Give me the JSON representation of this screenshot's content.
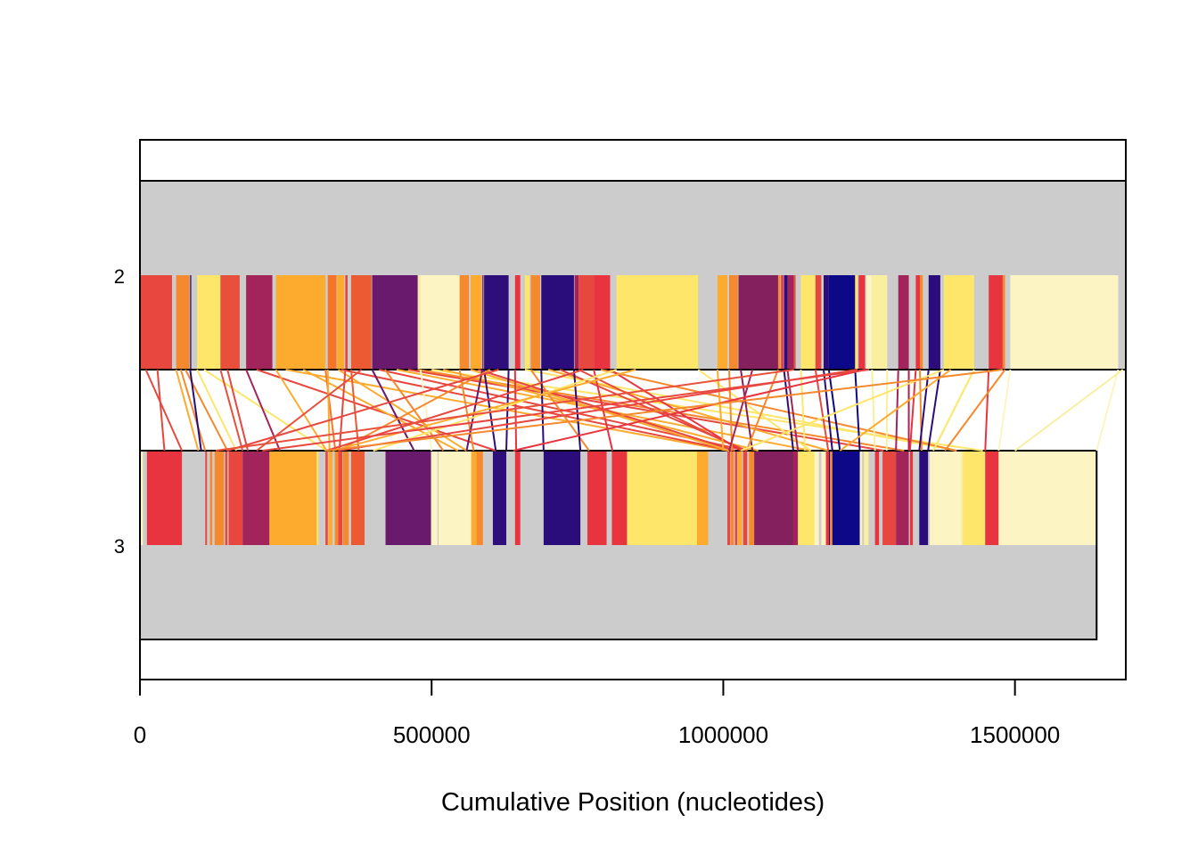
{
  "chart_data": {
    "type": "synteny",
    "title": "",
    "xlabel": "Cumulative Position (nucleotides)",
    "ylabel": "",
    "xlim": [
      0,
      1690000
    ],
    "x_ticks": [
      0,
      500000,
      1000000,
      1500000
    ],
    "x_tick_labels": [
      "0",
      "500000",
      "1000000",
      "1500000"
    ],
    "grid": false,
    "legend": "none",
    "background_color": "#cccccc",
    "genomes": [
      {
        "label": "2",
        "length": 1690000,
        "blocks": [
          [
            0,
            55000,
            "#e8473f"
          ],
          [
            62000,
            85000,
            "#f5892e"
          ],
          [
            86000,
            88000,
            "#2a0c7a"
          ],
          [
            98000,
            138000,
            "#fde66a"
          ],
          [
            138000,
            171000,
            "#e8503b"
          ],
          [
            182000,
            227000,
            "#a3245a"
          ],
          [
            233000,
            318000,
            "#fcab2e"
          ],
          [
            322000,
            337000,
            "#f6742a"
          ],
          [
            338000,
            350000,
            "#fcab2e"
          ],
          [
            352000,
            356000,
            "#e8473f"
          ],
          [
            362000,
            397000,
            "#ec5a34"
          ],
          [
            398000,
            476000,
            "#6a1a6c"
          ],
          [
            477000,
            481000,
            "#f9ef9e"
          ],
          [
            481000,
            548000,
            "#fdf4c4"
          ],
          [
            548000,
            564000,
            "#f5892e"
          ],
          [
            567000,
            586000,
            "#fcab2e"
          ],
          [
            587000,
            589000,
            "#6a1a6c"
          ],
          [
            590000,
            632000,
            "#2e0e7a"
          ],
          [
            643000,
            652000,
            "#e8343f"
          ],
          [
            660000,
            668000,
            "#fde66a"
          ],
          [
            670000,
            686000,
            "#f5892e"
          ],
          [
            688000,
            744000,
            "#2a0c7a"
          ],
          [
            745000,
            752000,
            "#a3245a"
          ],
          [
            752000,
            778000,
            "#e8473f"
          ],
          [
            778000,
            806000,
            "#e8343f"
          ],
          [
            817000,
            957000,
            "#fde66a"
          ],
          [
            990000,
            1007000,
            "#fcab2e"
          ],
          [
            1010000,
            1025000,
            "#f5892e"
          ],
          [
            1026000,
            1094000,
            "#84205e"
          ],
          [
            1094000,
            1098000,
            "#f5892e"
          ],
          [
            1099000,
            1103000,
            "#e8343f"
          ],
          [
            1104000,
            1110000,
            "#2a0c7a"
          ],
          [
            1110000,
            1121000,
            "#a3245a"
          ],
          [
            1121000,
            1124000,
            "#e8503b"
          ],
          [
            1133000,
            1158000,
            "#fde66a"
          ],
          [
            1158000,
            1168000,
            "#e8473f"
          ],
          [
            1172000,
            1181000,
            "#2a0c7a"
          ],
          [
            1181000,
            1226000,
            "#0d0887"
          ],
          [
            1226000,
            1230000,
            "#fde66a"
          ],
          [
            1232000,
            1243000,
            "#e8343f"
          ],
          [
            1245000,
            1255000,
            "#fdf4c4"
          ],
          [
            1255000,
            1281000,
            "#f9ef9e"
          ],
          [
            1300000,
            1318000,
            "#a3245a"
          ],
          [
            1330000,
            1337000,
            "#e8343f"
          ],
          [
            1337000,
            1342000,
            "#f5892e"
          ],
          [
            1352000,
            1372000,
            "#2a0c7a"
          ],
          [
            1378000,
            1430000,
            "#fde66a"
          ],
          [
            1455000,
            1479000,
            "#e8343f"
          ],
          [
            1479000,
            1483000,
            "#f5892e"
          ],
          [
            1492000,
            1677000,
            "#fdf4c4"
          ]
        ]
      },
      {
        "label": "3",
        "length": 1640000,
        "blocks": [
          [
            0,
            5000,
            "#fdf4c4"
          ],
          [
            12000,
            72000,
            "#e8343f"
          ],
          [
            112000,
            115000,
            "#e8473f"
          ],
          [
            120000,
            124000,
            "#f5892e"
          ],
          [
            128000,
            144000,
            "#f5892e"
          ],
          [
            146000,
            150000,
            "#e8473f"
          ],
          [
            152000,
            176000,
            "#e8473f"
          ],
          [
            176000,
            222000,
            "#a3245a"
          ],
          [
            222000,
            303000,
            "#fcab2e"
          ],
          [
            303000,
            306000,
            "#fde66a"
          ],
          [
            318000,
            322000,
            "#e8473f"
          ],
          [
            323000,
            330000,
            "#fcab2e"
          ],
          [
            334000,
            340000,
            "#f5892e"
          ],
          [
            340000,
            347000,
            "#e8473f"
          ],
          [
            348000,
            358000,
            "#f5892e"
          ],
          [
            362000,
            385000,
            "#ec5a34"
          ],
          [
            421000,
            499000,
            "#6a1a6c"
          ],
          [
            499000,
            510000,
            "#fdf4c4"
          ],
          [
            512000,
            568000,
            "#fdf4c4"
          ],
          [
            568000,
            577000,
            "#fcab2e"
          ],
          [
            577000,
            588000,
            "#f5892e"
          ],
          [
            605000,
            628000,
            "#2e0e7a"
          ],
          [
            643000,
            652000,
            "#e8343f"
          ],
          [
            692000,
            755000,
            "#2a0c7a"
          ],
          [
            767000,
            800000,
            "#e8343f"
          ],
          [
            809000,
            835000,
            "#e8343f"
          ],
          [
            835000,
            955000,
            "#fde66a"
          ],
          [
            955000,
            974000,
            "#fcab2e"
          ],
          [
            1007000,
            1012000,
            "#e8473f"
          ],
          [
            1013000,
            1018000,
            "#f5892e"
          ],
          [
            1020000,
            1024000,
            "#e8473f"
          ],
          [
            1025000,
            1032000,
            "#fcab2e"
          ],
          [
            1034000,
            1041000,
            "#e8473f"
          ],
          [
            1044000,
            1053000,
            "#f5892e"
          ],
          [
            1053000,
            1120000,
            "#84205e"
          ],
          [
            1120000,
            1128000,
            "#a3245a"
          ],
          [
            1128000,
            1133000,
            "#fde66a"
          ],
          [
            1133000,
            1156000,
            "#fde66a"
          ],
          [
            1156000,
            1164000,
            "#fdf4c4"
          ],
          [
            1168000,
            1176000,
            "#fdf4c4"
          ],
          [
            1176000,
            1181000,
            "#e8343f"
          ],
          [
            1181000,
            1183000,
            "#2a0c7a"
          ],
          [
            1183000,
            1187000,
            "#f5892e"
          ],
          [
            1187000,
            1234000,
            "#0d0887"
          ],
          [
            1234000,
            1238000,
            "#fdf4c4"
          ],
          [
            1241000,
            1249000,
            "#f9ef9e"
          ],
          [
            1260000,
            1267000,
            "#e8343f"
          ],
          [
            1273000,
            1296000,
            "#e8473f"
          ],
          [
            1296000,
            1318000,
            "#a3245a"
          ],
          [
            1320000,
            1325000,
            "#e8343f"
          ],
          [
            1336000,
            1351000,
            "#2a0c7a"
          ],
          [
            1354000,
            1359000,
            "#fdf4c4"
          ],
          [
            1359000,
            1408000,
            "#fdf4c4"
          ],
          [
            1408000,
            1411000,
            "#f9ef9e"
          ],
          [
            1411000,
            1449000,
            "#fde66a"
          ],
          [
            1449000,
            1472000,
            "#e8343f"
          ],
          [
            1472000,
            1640000,
            "#fdf4c4"
          ]
        ]
      }
    ],
    "links": [
      [
        10000,
        72000,
        "#e8473f"
      ],
      [
        30000,
        42000,
        "#e8473f"
      ],
      [
        62000,
        100000,
        "#fcab2e"
      ],
      [
        70000,
        112000,
        "#f5892e"
      ],
      [
        78000,
        150000,
        "#f5892e"
      ],
      [
        86000,
        105000,
        "#2a0c7a"
      ],
      [
        98000,
        165000,
        "#fde66a"
      ],
      [
        110000,
        320000,
        "#fde66a"
      ],
      [
        138000,
        176000,
        "#e8503b"
      ],
      [
        150000,
        185000,
        "#e8473f"
      ],
      [
        182000,
        240000,
        "#a3245a"
      ],
      [
        200000,
        610000,
        "#e8473f"
      ],
      [
        233000,
        320000,
        "#fcab2e"
      ],
      [
        250000,
        1010000,
        "#fcab2e"
      ],
      [
        280000,
        545000,
        "#fcab2e"
      ],
      [
        318000,
        335000,
        "#f6742a"
      ],
      [
        322000,
        325000,
        "#fcab2e"
      ],
      [
        340000,
        560000,
        "#fcab2e"
      ],
      [
        345000,
        1015000,
        "#e8473f"
      ],
      [
        352000,
        342000,
        "#e8473f"
      ],
      [
        362000,
        375000,
        "#ec5a34"
      ],
      [
        380000,
        200000,
        "#e8503b"
      ],
      [
        398000,
        470000,
        "#6a1a6c"
      ],
      [
        410000,
        1040000,
        "#e8473f"
      ],
      [
        420000,
        520000,
        "#f5892e"
      ],
      [
        440000,
        1150000,
        "#fcab2e"
      ],
      [
        460000,
        1275000,
        "#e8473f"
      ],
      [
        476000,
        1310000,
        "#f5892e"
      ],
      [
        481000,
        500000,
        "#fdf4c4"
      ],
      [
        500000,
        1445000,
        "#fde66a"
      ],
      [
        520000,
        1060000,
        "#fcab2e"
      ],
      [
        548000,
        572000,
        "#f5892e"
      ],
      [
        567000,
        1010000,
        "#fcab2e"
      ],
      [
        580000,
        1020000,
        "#e8473f"
      ],
      [
        587000,
        560000,
        "#6a1a6c"
      ],
      [
        590000,
        610000,
        "#2e0e7a"
      ],
      [
        600000,
        340000,
        "#f5892e"
      ],
      [
        615000,
        150000,
        "#e8473f"
      ],
      [
        632000,
        628000,
        "#2e0e7a"
      ],
      [
        643000,
        645000,
        "#e8343f"
      ],
      [
        660000,
        1400000,
        "#fde66a"
      ],
      [
        670000,
        770000,
        "#f5892e"
      ],
      [
        688000,
        692000,
        "#2a0c7a"
      ],
      [
        700000,
        1180000,
        "#fcab2e"
      ],
      [
        720000,
        1040000,
        "#e8473f"
      ],
      [
        744000,
        755000,
        "#2a0c7a"
      ],
      [
        752000,
        1035000,
        "#e8473f"
      ],
      [
        760000,
        320000,
        "#e8473f"
      ],
      [
        778000,
        810000,
        "#e8343f"
      ],
      [
        790000,
        1400000,
        "#f5892e"
      ],
      [
        806000,
        1030000,
        "#e8343f"
      ],
      [
        817000,
        400000,
        "#fde66a"
      ],
      [
        850000,
        330000,
        "#fcab2e"
      ],
      [
        957000,
        1150000,
        "#fde66a"
      ],
      [
        990000,
        1000000,
        "#fcab2e"
      ],
      [
        1010000,
        1015000,
        "#f5892e"
      ],
      [
        1030000,
        1050000,
        "#84205e"
      ],
      [
        1050000,
        1010000,
        "#a3245a"
      ],
      [
        1094000,
        1040000,
        "#f5892e"
      ],
      [
        1104000,
        1120000,
        "#2a0c7a"
      ],
      [
        1110000,
        1128000,
        "#a3245a"
      ],
      [
        1121000,
        130000,
        "#e8503b"
      ],
      [
        1133000,
        1140000,
        "#fde66a"
      ],
      [
        1158000,
        1180000,
        "#e8473f"
      ],
      [
        1172000,
        1187000,
        "#2a0c7a"
      ],
      [
        1181000,
        1200000,
        "#0d0887"
      ],
      [
        1226000,
        1234000,
        "#0d0887"
      ],
      [
        1230000,
        340000,
        "#e8473f"
      ],
      [
        1243000,
        640000,
        "#e8343f"
      ],
      [
        1250000,
        210000,
        "#e8473f"
      ],
      [
        1255000,
        1260000,
        "#f9ef9e"
      ],
      [
        1281000,
        1280000,
        "#f9ef9e"
      ],
      [
        1300000,
        1296000,
        "#a3245a"
      ],
      [
        1318000,
        1318000,
        "#a3245a"
      ],
      [
        1330000,
        1320000,
        "#e8343f"
      ],
      [
        1337000,
        1340000,
        "#f5892e"
      ],
      [
        1352000,
        1336000,
        "#2a0c7a"
      ],
      [
        1372000,
        1351000,
        "#2a0c7a"
      ],
      [
        1378000,
        1030000,
        "#fde66a"
      ],
      [
        1390000,
        1200000,
        "#fcab2e"
      ],
      [
        1430000,
        1360000,
        "#fde66a"
      ],
      [
        1455000,
        1449000,
        "#e8343f"
      ],
      [
        1479000,
        320000,
        "#f5892e"
      ],
      [
        1483000,
        1380000,
        "#f5892e"
      ],
      [
        1492000,
        1472000,
        "#fdf4c4"
      ],
      [
        1677000,
        1640000,
        "#fdf4c4"
      ],
      [
        1685000,
        1500000,
        "#f9ef9e"
      ]
    ]
  }
}
